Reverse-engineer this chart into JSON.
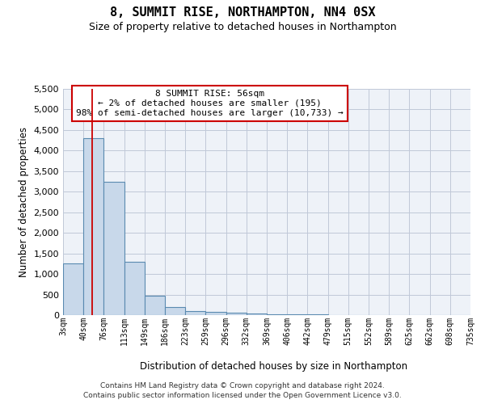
{
  "title": "8, SUMMIT RISE, NORTHAMPTON, NN4 0SX",
  "subtitle": "Size of property relative to detached houses in Northampton",
  "xlabel": "Distribution of detached houses by size in Northampton",
  "ylabel": "Number of detached properties",
  "footnote1": "Contains HM Land Registry data © Crown copyright and database right 2024.",
  "footnote2": "Contains public sector information licensed under the Open Government Licence v3.0.",
  "annotation_line1": "8 SUMMIT RISE: 56sqm",
  "annotation_line2": "← 2% of detached houses are smaller (195)",
  "annotation_line3": "98% of semi-detached houses are larger (10,733) →",
  "bar_color": "#c8d8ea",
  "bar_edge_color": "#5a8ab0",
  "redline_color": "#cc0000",
  "bg_color": "#eef2f8",
  "grid_color": "#c0c8d8",
  "bin_edges": [
    3,
    40,
    76,
    113,
    149,
    186,
    223,
    259,
    296,
    332,
    369,
    406,
    442,
    479,
    515,
    552,
    589,
    625,
    662,
    698,
    735
  ],
  "bar_heights": [
    1250,
    4300,
    3250,
    1300,
    480,
    200,
    100,
    70,
    50,
    30,
    20,
    15,
    10,
    8,
    6,
    5,
    4,
    3,
    2,
    2
  ],
  "red_line_x": 56,
  "ylim": [
    0,
    5500
  ],
  "yticks": [
    0,
    500,
    1000,
    1500,
    2000,
    2500,
    3000,
    3500,
    4000,
    4500,
    5000,
    5500
  ]
}
